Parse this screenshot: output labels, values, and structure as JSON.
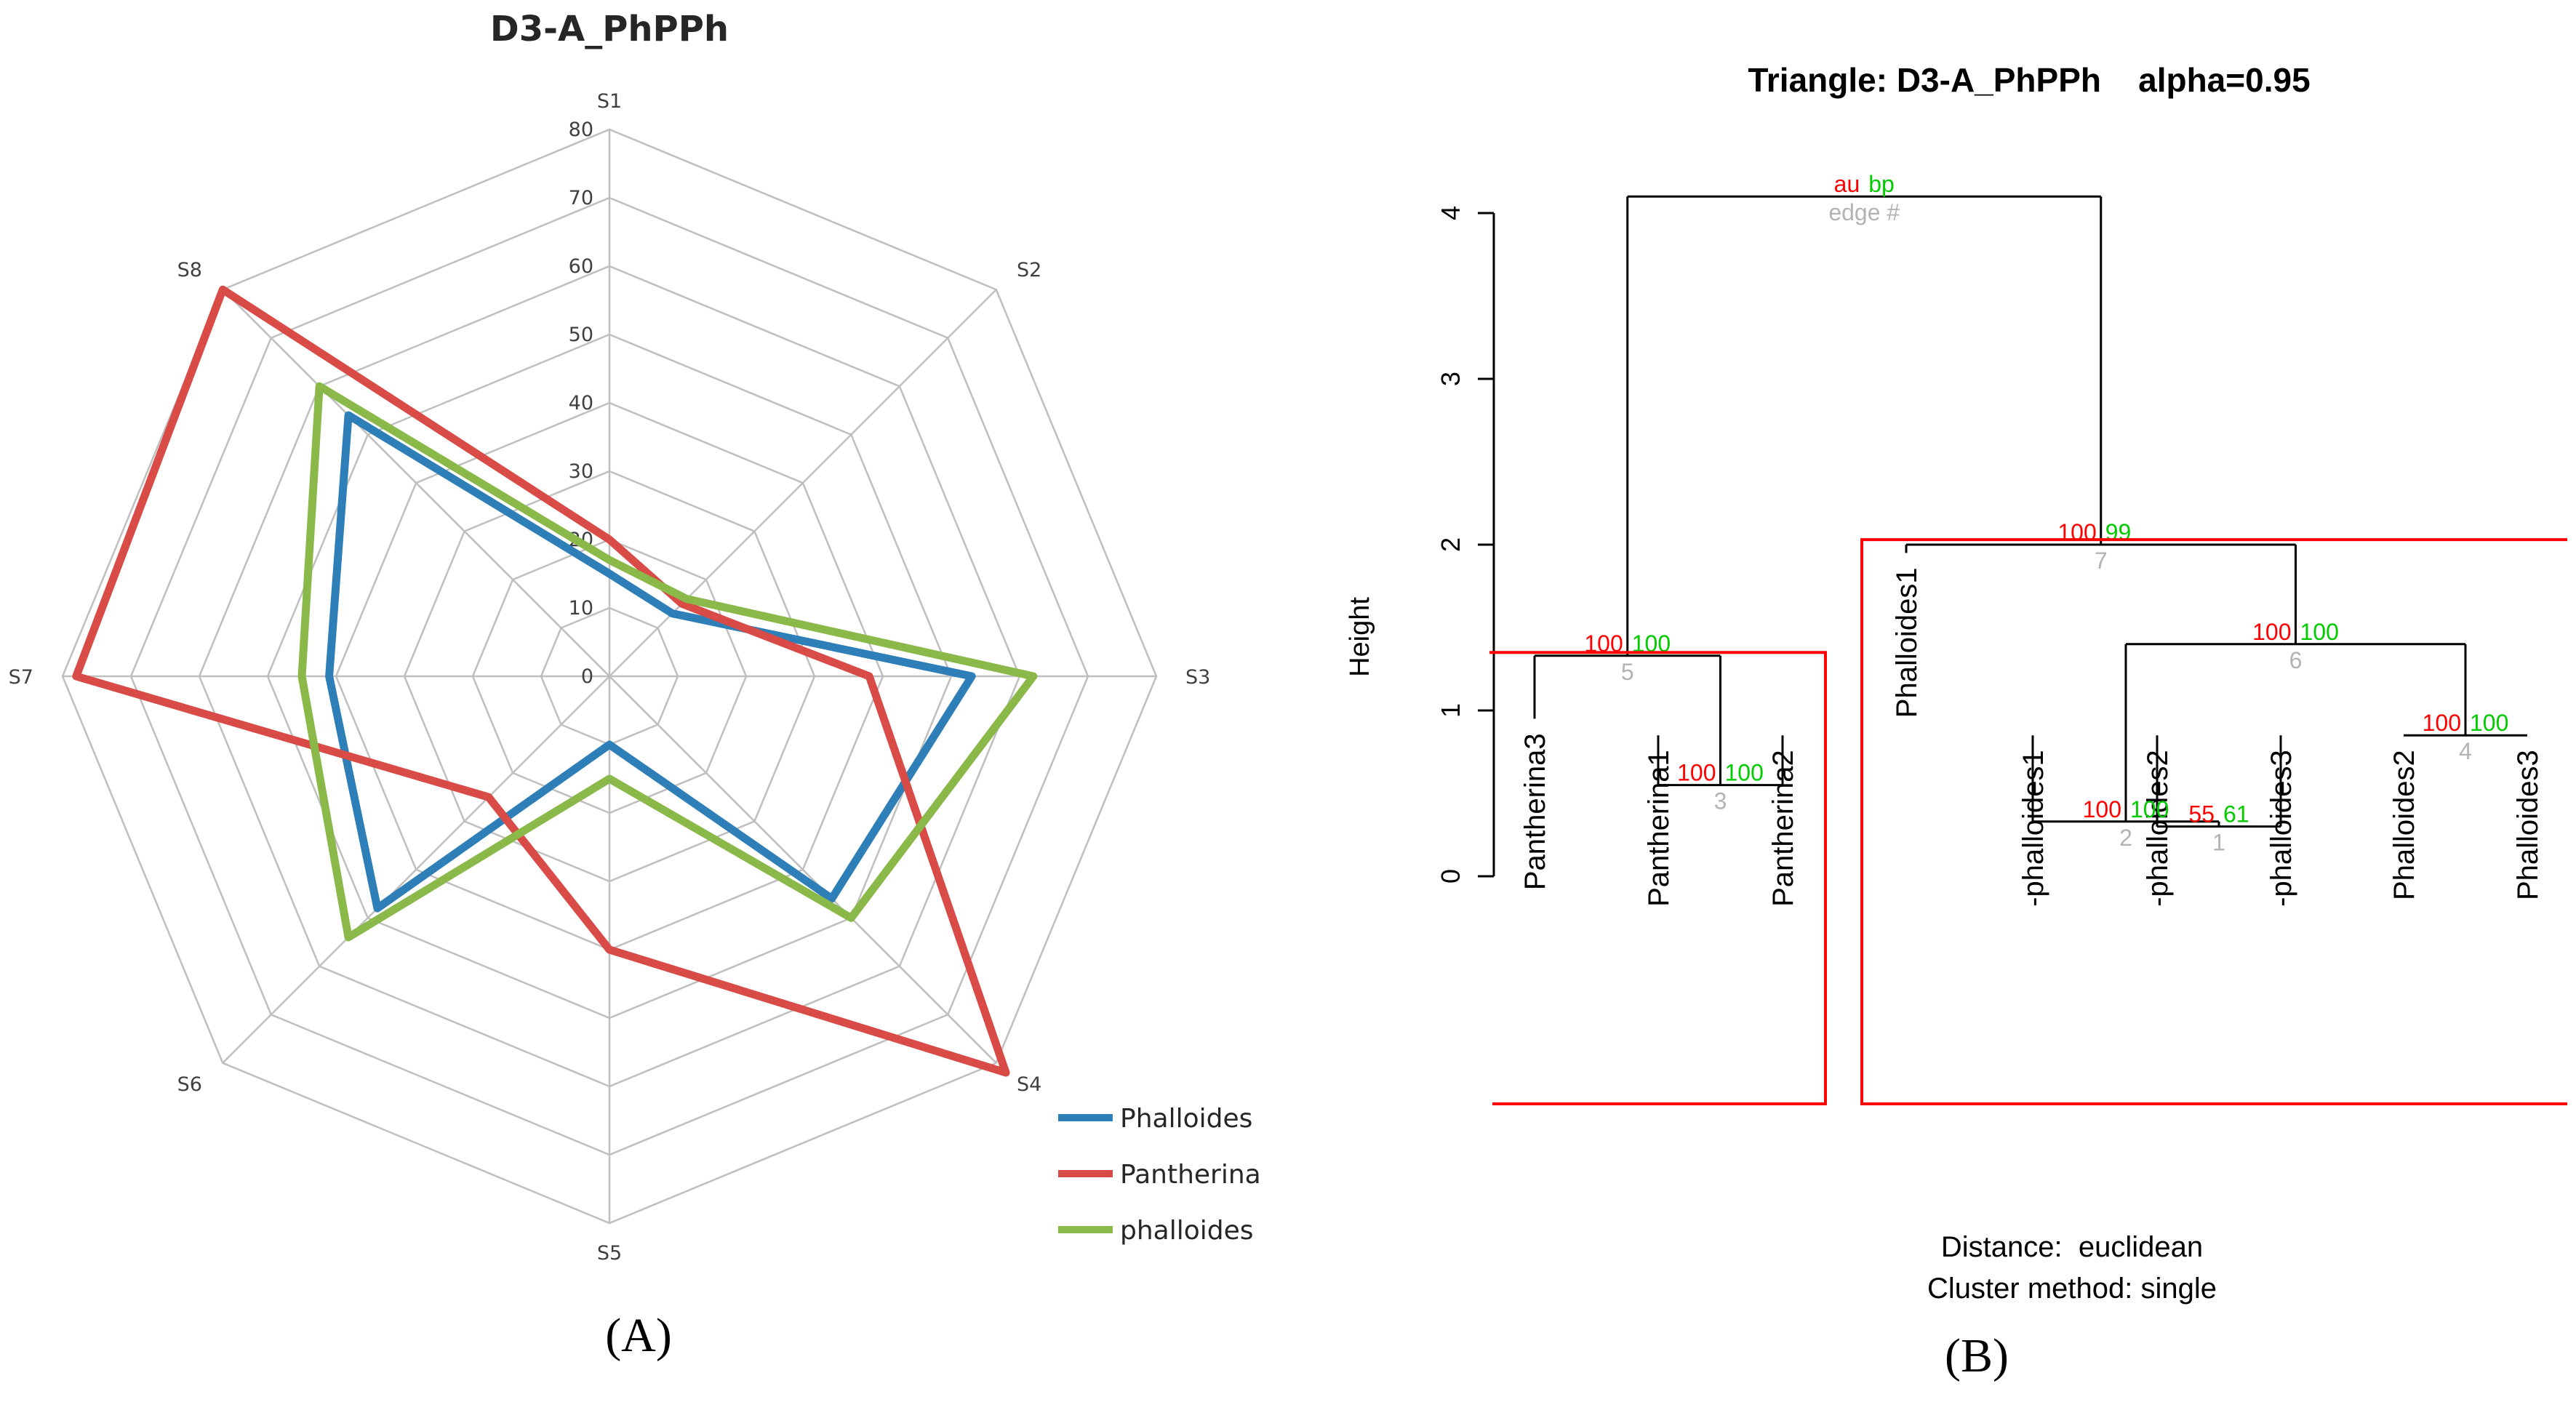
{
  "colors": {
    "Phalloides": "#2e7fb8",
    "Pantherina": "#d94b47",
    "phalloides": "#8ab94a",
    "grid": "#bfbfbf",
    "au": "#ff0000",
    "bp": "#00cc00",
    "edge": "#b3b3b3",
    "cluster_box": "#ff0000"
  },
  "panel_a": {
    "label": "(A)"
  },
  "panel_b": {
    "label": "(B)"
  },
  "chart_data": [
    {
      "type": "radar",
      "title": "D3-A_PhPPh",
      "axes": [
        "S1",
        "S2",
        "S3",
        "S4",
        "S5",
        "S6",
        "S7",
        "S8"
      ],
      "rlim": [
        0,
        80
      ],
      "ticks": [
        "0",
        "10",
        "20",
        "30",
        "40",
        "50",
        "60",
        "70",
        "80"
      ],
      "grid": true,
      "legend_position": "bottom-right",
      "series": [
        {
          "name": "Phalloides",
          "values": [
            15,
            13,
            53,
            46,
            10,
            48,
            41,
            54
          ]
        },
        {
          "name": "Pantherina",
          "values": [
            20,
            15,
            38,
            82,
            40,
            25,
            78,
            80
          ]
        },
        {
          "name": "phalloides",
          "values": [
            17,
            16,
            62,
            50,
            15,
            54,
            45,
            60
          ]
        }
      ]
    },
    {
      "type": "dendrogram",
      "title": "Triangle: D3-A_PhPPh    alpha=0.95",
      "ylabel": "Height",
      "ylim": [
        0,
        4
      ],
      "yticks": [
        "0",
        "1",
        "2",
        "3",
        "4"
      ],
      "legend": {
        "au": "au",
        "bp": "bp",
        "edge": "edge #"
      },
      "leaves": [
        "Pantherina3",
        "Pantherina1",
        "Pantherina2",
        "Phalloides1",
        "-phalloides1",
        "-phalloides2",
        "-phalloides3",
        "Phalloides2",
        "Phalloides3"
      ],
      "merges": [
        {
          "edge": "1",
          "left": "-phalloides2",
          "right": "-phalloides3",
          "height": 0.3,
          "au": "55",
          "bp": "61"
        },
        {
          "edge": "2",
          "left": "-phalloides1",
          "right": "edge 1",
          "height": 0.33,
          "au": "100",
          "bp": "100"
        },
        {
          "edge": "3",
          "left": "Pantherina1",
          "right": "Pantherina2",
          "height": 0.55,
          "au": "100",
          "bp": "100"
        },
        {
          "edge": "4",
          "left": "Phalloides2",
          "right": "Phalloides3",
          "height": 0.85,
          "au": "100",
          "bp": "100"
        },
        {
          "edge": "5",
          "left": "Pantherina3",
          "right": "edge 3",
          "height": 1.33,
          "au": "100",
          "bp": "100"
        },
        {
          "edge": "6",
          "left": "edge 2",
          "right": "edge 4",
          "height": 1.4,
          "au": "100",
          "bp": "100"
        },
        {
          "edge": "7",
          "left": "Phalloides1",
          "right": "edge 6",
          "height": 2.0,
          "au": "100",
          "bp": "99"
        },
        {
          "edge": "",
          "left": "edge 5",
          "right": "edge 7",
          "height": 4.1
        }
      ],
      "footer": [
        "Distance:  euclidean",
        "Cluster method: single"
      ]
    }
  ]
}
